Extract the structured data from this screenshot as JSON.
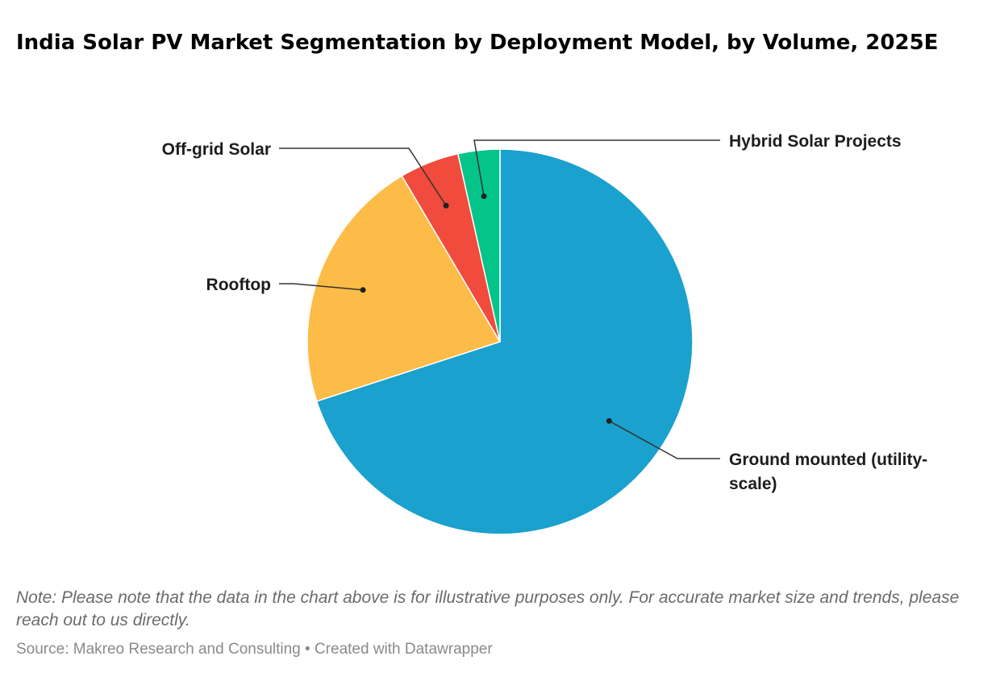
{
  "chart_data": {
    "type": "pie",
    "title": "India Solar PV Market Segmentation by Deployment Model, by Volume, 2025E",
    "slices": [
      {
        "name": "Ground mounted (utility-scale)",
        "label_lines": [
          "Ground mounted (utility-",
          "scale)"
        ],
        "value": 70,
        "color": "#1aa1cd"
      },
      {
        "name": "Rooftop",
        "label_lines": [
          "Rooftop"
        ],
        "value": 21.5,
        "color": "#fdbc47"
      },
      {
        "name": "Off-grid Solar",
        "label_lines": [
          "Off-grid Solar"
        ],
        "value": 5,
        "color": "#f04b3d"
      },
      {
        "name": "Hybrid Solar Projects",
        "label_lines": [
          "Hybrid Solar Projects"
        ],
        "value": 3.5,
        "color": "#04c48a"
      }
    ],
    "start_angle": "12 o'clock",
    "direction": "clockwise"
  },
  "footer": {
    "note": "Note: Please note that the data in the chart above is for illustrative purposes only. For accurate market size and trends, please reach out to us directly.",
    "source": "Source: Makreo Research and Consulting • Created with Datawrapper"
  }
}
